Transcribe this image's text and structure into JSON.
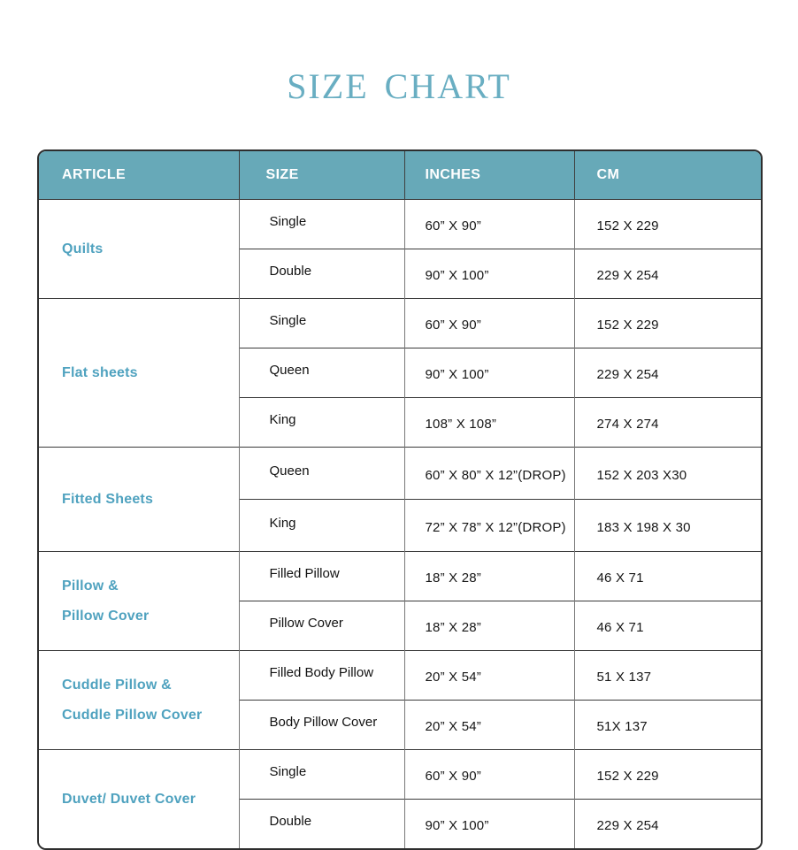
{
  "colors": {
    "header_bg": "#67a9b8",
    "header_text": "#ffffff",
    "article_text": "#4fa2bf",
    "title_text": "#69aec2",
    "border_dark": "#3a3a3a",
    "border_light": "#777777"
  },
  "chart_data": {
    "type": "table",
    "title": "SIZE CHART",
    "columns": [
      "ARTICLE",
      "SIZE",
      "INCHES",
      "CM"
    ],
    "sections": [
      {
        "article": "Quilts",
        "rows": [
          {
            "size": "Single",
            "inches": "60” X 90”",
            "cm": "152 X 229"
          },
          {
            "size": "Double",
            "inches": "90” X 100”",
            "cm": "229 X 254"
          }
        ]
      },
      {
        "article": "Flat sheets",
        "rows": [
          {
            "size": "Single",
            "inches": "60” X 90”",
            "cm": "152 X 229"
          },
          {
            "size": "Queen",
            "inches": "90” X 100”",
            "cm": "229 X 254"
          },
          {
            "size": "King",
            "inches": "108” X 108”",
            "cm": "274 X 274"
          }
        ]
      },
      {
        "article": "Fitted Sheets",
        "rows": [
          {
            "size": "Queen",
            "inches": "60” X 80” X 12”(DROP)",
            "cm": "152 X 203 X30"
          },
          {
            "size": "King",
            "inches": "72” X 78” X 12”(DROP)",
            "cm": "183 X 198 X 30"
          }
        ]
      },
      {
        "article": "Pillow &\nPillow Cover",
        "rows": [
          {
            "size": "Filled Pillow",
            "inches": "18” X 28”",
            "cm": "46 X 71"
          },
          {
            "size": "Pillow Cover",
            "inches": "18” X 28”",
            "cm": "46 X 71"
          }
        ]
      },
      {
        "article": "Cuddle Pillow &\nCuddle Pillow Cover",
        "rows": [
          {
            "size": "Filled Body Pillow",
            "inches": "20” X 54”",
            "cm": "51 X 137"
          },
          {
            "size": "Body Pillow Cover",
            "inches": "20” X 54”",
            "cm": "51X 137"
          }
        ]
      },
      {
        "article": "Duvet/ Duvet Cover",
        "rows": [
          {
            "size": "Single",
            "inches": "60” X 90”",
            "cm": "152 X 229"
          },
          {
            "size": "Double",
            "inches": "90” X 100”",
            "cm": "229 X 254"
          }
        ]
      }
    ]
  }
}
